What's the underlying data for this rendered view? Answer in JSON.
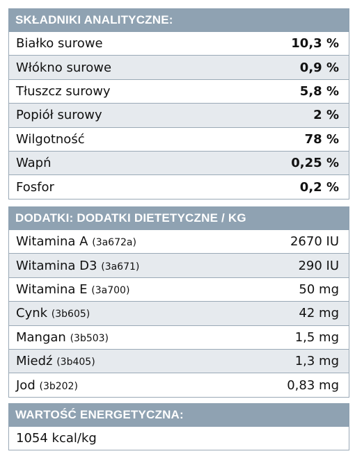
{
  "analytical": {
    "header": "SKŁADNIKI ANALITYCZNE:",
    "rows": [
      {
        "label": "Białko surowe",
        "value": "10,3 %"
      },
      {
        "label": "Włókno surowe",
        "value": "0,9 %"
      },
      {
        "label": "Tłuszcz surowy",
        "value": "5,8 %"
      },
      {
        "label": "Popiół surowy",
        "value": "2 %"
      },
      {
        "label": "Wilgotność",
        "value": "78 %"
      },
      {
        "label": "Wapń",
        "value": "0,25 %"
      },
      {
        "label": "Fosfor",
        "value": "0,2 %"
      }
    ]
  },
  "additives": {
    "header": "DODATKI: DODATKI DIETETYCZNE / KG",
    "rows": [
      {
        "label": "Witamina A",
        "code": "(3a672a)",
        "value": "2670 IU"
      },
      {
        "label": "Witamina D3",
        "code": "(3a671)",
        "value": "290 IU"
      },
      {
        "label": "Witamina E",
        "code": "(3a700)",
        "value": "50 mg"
      },
      {
        "label": "Cynk",
        "code": "(3b605)",
        "value": "42 mg"
      },
      {
        "label": "Mangan",
        "code": "(3b503)",
        "value": "1,5 mg"
      },
      {
        "label": "Miedź",
        "code": "(3b405)",
        "value": "1,3 mg"
      },
      {
        "label": "Jod",
        "code": "(3b202)",
        "value": "0,83 mg"
      }
    ]
  },
  "energy": {
    "header": "WARTOŚĆ ENERGETYCZNA:",
    "value": "1054 kcal/kg"
  },
  "colors": {
    "header_bg": "#8fa2b2",
    "alt_row_bg": "#e6eaee",
    "border": "#9aa9b6"
  }
}
